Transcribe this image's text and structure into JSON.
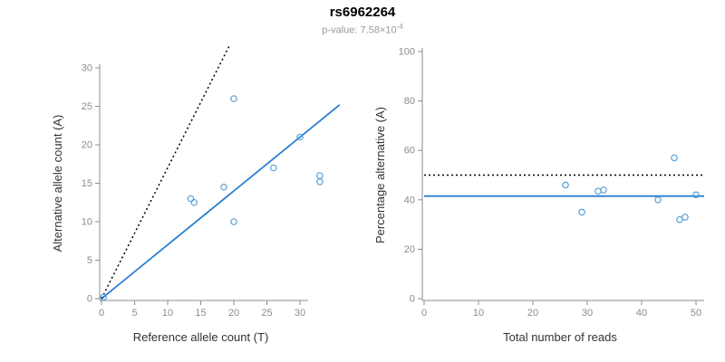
{
  "header": {
    "title": "rs6962264",
    "pvalue": {
      "label": "p-value: 7.58×10",
      "exponent": "-4"
    }
  },
  "colors": {
    "point": "#56a0d8",
    "fit_line": "#2a7fd0",
    "reference_line": "#000000",
    "axis": "#8c8c8c",
    "tick_label": "#8c8c8c",
    "axis_title": "#333333",
    "background": "#ffffff"
  },
  "chart_data": [
    {
      "type": "scatter",
      "xlabel": "Reference allele count (T)",
      "ylabel": "Alternative allele count (A)",
      "xlim": [
        0,
        36
      ],
      "ylim": [
        0,
        33
      ],
      "xticks": [
        0,
        5,
        10,
        15,
        20,
        25,
        30
      ],
      "yticks": [
        0,
        5,
        10,
        15,
        20,
        25,
        30
      ],
      "grid": false,
      "legend": null,
      "points": [
        [
          0.3,
          0.2
        ],
        [
          13.5,
          13
        ],
        [
          14,
          12.5
        ],
        [
          18.5,
          14.5
        ],
        [
          20,
          26
        ],
        [
          20,
          10
        ],
        [
          26,
          17
        ],
        [
          30,
          21
        ],
        [
          33,
          16
        ],
        [
          33,
          15.2
        ]
      ],
      "lines": [
        {
          "name": "regression-line",
          "style": "solid",
          "color": "#2a7fd0",
          "x1": 0,
          "y1": 0,
          "x2": 36,
          "y2": 25.2
        },
        {
          "name": "identity-dotted-line",
          "style": "dotted",
          "color": "#000000",
          "x1": 0,
          "y1": 0,
          "x2": 19.4,
          "y2": 33
        }
      ]
    },
    {
      "type": "scatter",
      "xlabel": "Total number of reads",
      "ylabel": "Percentage alternative (A)",
      "xlim": [
        0,
        51.5
      ],
      "ylim": [
        0,
        100
      ],
      "xticks": [
        0,
        10,
        20,
        30,
        40,
        50
      ],
      "yticks": [
        0,
        20,
        40,
        60,
        80,
        100
      ],
      "grid": false,
      "legend": null,
      "points": [
        [
          26,
          46
        ],
        [
          29,
          35
        ],
        [
          32,
          43.5
        ],
        [
          33,
          44
        ],
        [
          43,
          40
        ],
        [
          46,
          57
        ],
        [
          47,
          32
        ],
        [
          48,
          33
        ],
        [
          50,
          42
        ]
      ],
      "lines": [
        {
          "name": "mean-percentage-line",
          "style": "solid",
          "color": "#2a7fd0",
          "x1": 0,
          "y1": 41.5,
          "x2": 51.5,
          "y2": 41.5
        },
        {
          "name": "fifty-percent-dotted-line",
          "style": "dotted",
          "color": "#000000",
          "x1": 0,
          "y1": 50,
          "x2": 51.5,
          "y2": 50
        }
      ]
    }
  ]
}
